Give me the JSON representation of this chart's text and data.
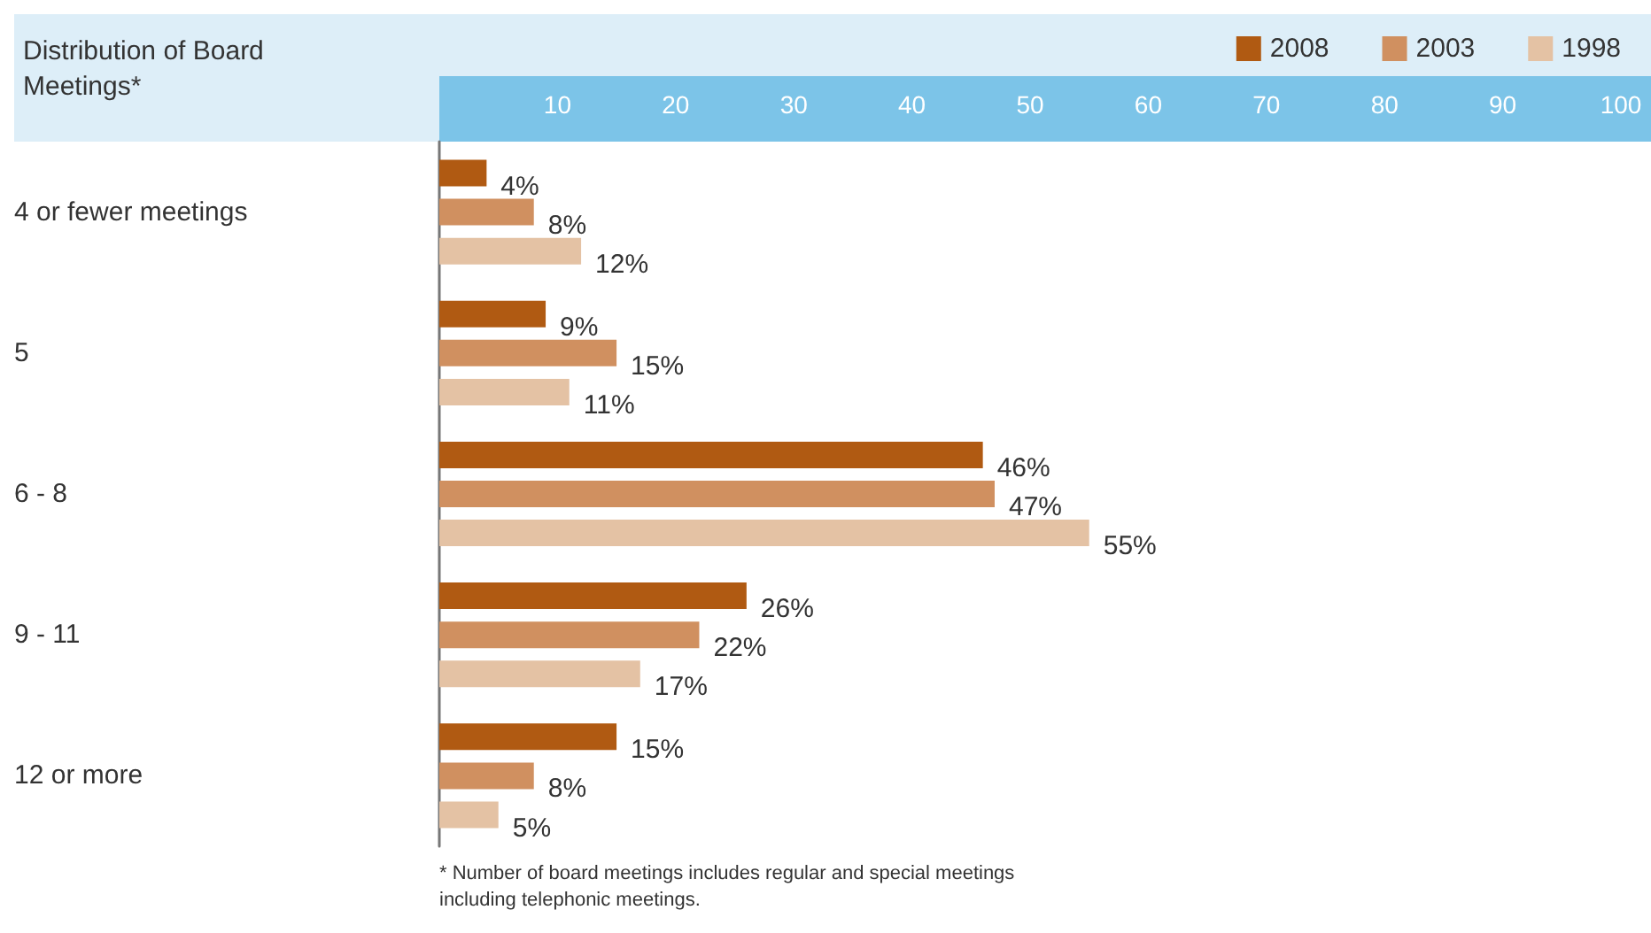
{
  "chart_data": {
    "type": "bar",
    "orientation": "horizontal",
    "title": "Distribution of Board Meetings*",
    "categories": [
      "4 or fewer meetings",
      "5",
      "6 - 8",
      "9 - 11",
      "12 or more"
    ],
    "series": [
      {
        "name": "2008",
        "color": "#b05a12",
        "values": [
          4,
          9,
          46,
          26,
          15
        ],
        "value_labels": [
          "4%",
          "9%",
          "46%",
          "26%",
          "15%"
        ]
      },
      {
        "name": "2003",
        "color": "#d09060",
        "values": [
          8,
          15,
          47,
          22,
          8
        ],
        "value_labels": [
          "8%",
          "15%",
          "47%",
          "22%",
          "8%"
        ]
      },
      {
        "name": "1998",
        "color": "#e4c2a4",
        "values": [
          12,
          11,
          55,
          17,
          5
        ],
        "value_labels": [
          "12%",
          "11%",
          "55%",
          "17%",
          "5%"
        ]
      }
    ],
    "xlim": [
      0,
      100
    ],
    "xticks": [
      10,
      20,
      30,
      40,
      50,
      60,
      70,
      80,
      90,
      100
    ],
    "grid": false,
    "legend": "top right",
    "annotations": [
      "* Number of board meetings includes regular and special meetings including telephonic meetings."
    ]
  }
}
